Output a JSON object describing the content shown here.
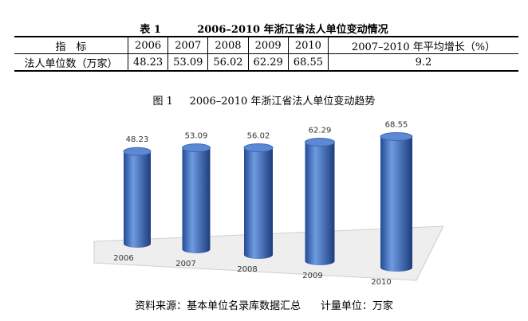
{
  "table_caption": {
    "label": "表 1",
    "title": "2006–2010 年浙江省法人单位变动情况"
  },
  "table": {
    "header": [
      "指　标",
      "2006",
      "2007",
      "2008",
      "2009",
      "2010",
      "2007–2010 年平均增长（%）"
    ],
    "rows": [
      [
        "法人单位数（万家）",
        "48.23",
        "53.09",
        "56.02",
        "62.29",
        "68.55",
        "9.2"
      ]
    ]
  },
  "chart_data": {
    "type": "cylinder",
    "label": "图 1",
    "title": "2006–2010 年浙江省法人单位变动趋势",
    "categories": [
      "2006",
      "2007",
      "2008",
      "2009",
      "2010"
    ],
    "values": [
      48.23,
      53.09,
      56.02,
      62.29,
      68.55
    ],
    "color": "#3a66b8"
  },
  "footer": {
    "source": "资料来源：基本单位名录库数据汇总",
    "unit": "计量单位：万家"
  }
}
